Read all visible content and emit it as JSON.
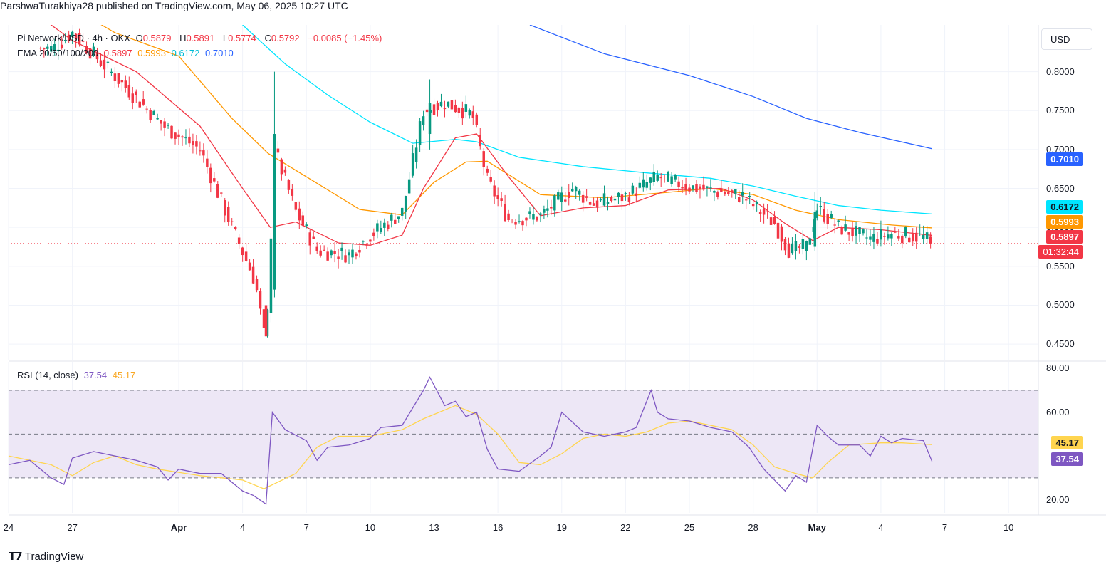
{
  "caption": "ParshwaTurakhiya28 published on TradingView.com, May 06, 2025 10:27 UTC",
  "currency": "USD",
  "brand": "TradingView",
  "legend": {
    "symbol": "Pi Network/USD · 4h · OKX",
    "open_label": "O",
    "open": "0.5879",
    "high_label": "H",
    "high": "0.5891",
    "low_label": "L",
    "low": "0.5774",
    "close_label": "C",
    "close": "0.5792",
    "change": "−0.0085 (−1.45%)",
    "ema_label": "EMA 20/50/100/200",
    "ema20": "0.5897",
    "ema50": "0.5993",
    "ema100": "0.6172",
    "ema200": "0.7010"
  },
  "rsi_legend": {
    "label": "RSI (14, close)",
    "rsi": "37.54",
    "ma": "45.17"
  },
  "price_tags": {
    "ema200": "0.7010",
    "ema100": "0.6172",
    "ema50": "0.5993",
    "ema20": "0.5897",
    "countdown": "01:32:44",
    "rsi": "37.54",
    "rsi_ma": "45.17"
  },
  "colors": {
    "up": "#089981",
    "down": "#f23645",
    "ema20": "#f23645",
    "ema50": "#ff9800",
    "ema100": "#00e5ff",
    "ema200": "#2962ff",
    "rsi": "#7e57c2",
    "rsi_ma": "#ffd54f",
    "rsi_band": "#ede7f6"
  },
  "chart_data": [
    {
      "type": "candlestick",
      "title": "Pi Network/USD · 4h · OKX",
      "y_ticks": [
        "0.4500",
        "0.5000",
        "0.5500",
        "0.6000",
        "0.6500",
        "0.7000",
        "0.7500",
        "0.8000"
      ],
      "y_tick_values": [
        0.45,
        0.5,
        0.55,
        0.6,
        0.65,
        0.7,
        0.75,
        0.8
      ],
      "x_ticks": [
        "24",
        "27",
        "Apr",
        "4",
        "7",
        "10",
        "13",
        "16",
        "19",
        "22",
        "25",
        "28",
        "May",
        "4",
        "7",
        "10"
      ],
      "x_tick_values": [
        0,
        3,
        8,
        11,
        14,
        17,
        20,
        23,
        26,
        29,
        32,
        35,
        38,
        41,
        44,
        47
      ],
      "ylim": [
        0.43,
        0.86
      ],
      "xlim": [
        0,
        48.4
      ],
      "last_price": 0.5792,
      "key_points": [
        {
          "day": 2.1,
          "price": 0.83
        },
        {
          "day": 3.0,
          "price": 0.85
        },
        {
          "day": 5.5,
          "price": 0.78
        },
        {
          "day": 7.3,
          "price": 0.73
        },
        {
          "day": 9.0,
          "price": 0.7
        },
        {
          "day": 10.5,
          "price": 0.6
        },
        {
          "day": 11.6,
          "price": 0.53
        },
        {
          "day": 12.1,
          "price": 0.445
        },
        {
          "day": 12.5,
          "price": 0.7
        },
        {
          "day": 13.5,
          "price": 0.62
        },
        {
          "day": 14.5,
          "price": 0.57
        },
        {
          "day": 16.0,
          "price": 0.565
        },
        {
          "day": 17.0,
          "price": 0.59
        },
        {
          "day": 18.5,
          "price": 0.62
        },
        {
          "day": 19.5,
          "price": 0.75
        },
        {
          "day": 20.5,
          "price": 0.76
        },
        {
          "day": 21.8,
          "price": 0.745
        },
        {
          "day": 22.5,
          "price": 0.66
        },
        {
          "day": 23.5,
          "price": 0.61
        },
        {
          "day": 25.0,
          "price": 0.615
        },
        {
          "day": 26.5,
          "price": 0.65
        },
        {
          "day": 27.5,
          "price": 0.63
        },
        {
          "day": 29.0,
          "price": 0.64
        },
        {
          "day": 30.5,
          "price": 0.665
        },
        {
          "day": 32.0,
          "price": 0.652
        },
        {
          "day": 34.5,
          "price": 0.64
        },
        {
          "day": 36.0,
          "price": 0.605
        },
        {
          "day": 36.7,
          "price": 0.57
        },
        {
          "day": 37.5,
          "price": 0.575
        },
        {
          "day": 38.0,
          "price": 0.625
        },
        {
          "day": 39.0,
          "price": 0.6
        },
        {
          "day": 40.5,
          "price": 0.585
        },
        {
          "day": 41.5,
          "price": 0.592
        },
        {
          "day": 43.0,
          "price": 0.587
        },
        {
          "day": 43.4,
          "price": 0.5792
        }
      ],
      "ema20": [
        [
          0,
          0.9
        ],
        [
          3.0,
          0.84
        ],
        [
          6.0,
          0.8
        ],
        [
          9.0,
          0.73
        ],
        [
          11.0,
          0.65
        ],
        [
          12.3,
          0.6
        ],
        [
          13.5,
          0.607
        ],
        [
          15.5,
          0.58
        ],
        [
          17.0,
          0.577
        ],
        [
          18.5,
          0.59
        ],
        [
          19.5,
          0.65
        ],
        [
          21.0,
          0.715
        ],
        [
          22.0,
          0.72
        ],
        [
          23.5,
          0.665
        ],
        [
          25.0,
          0.615
        ],
        [
          27.0,
          0.625
        ],
        [
          29.0,
          0.628
        ],
        [
          31.0,
          0.648
        ],
        [
          33.5,
          0.65
        ],
        [
          35.0,
          0.635
        ],
        [
          36.5,
          0.605
        ],
        [
          37.8,
          0.583
        ],
        [
          39.0,
          0.6
        ],
        [
          41.0,
          0.597
        ],
        [
          43.4,
          0.5897
        ]
      ],
      "ema50": [
        [
          0,
          0.93
        ],
        [
          5.0,
          0.85
        ],
        [
          8.0,
          0.82
        ],
        [
          10.5,
          0.74
        ],
        [
          12.2,
          0.695
        ],
        [
          14.0,
          0.665
        ],
        [
          16.5,
          0.623
        ],
        [
          18.5,
          0.616
        ],
        [
          20.0,
          0.658
        ],
        [
          21.5,
          0.684
        ],
        [
          22.5,
          0.685
        ],
        [
          25.0,
          0.642
        ],
        [
          28.0,
          0.638
        ],
        [
          31.0,
          0.645
        ],
        [
          33.0,
          0.65
        ],
        [
          35.0,
          0.642
        ],
        [
          37.0,
          0.622
        ],
        [
          39.0,
          0.61
        ],
        [
          41.5,
          0.603
        ],
        [
          43.4,
          0.5993
        ]
      ],
      "ema100": [
        [
          11.0,
          0.86
        ],
        [
          13.0,
          0.81
        ],
        [
          15.0,
          0.77
        ],
        [
          17.0,
          0.735
        ],
        [
          19.0,
          0.708
        ],
        [
          21.0,
          0.713
        ],
        [
          22.0,
          0.71
        ],
        [
          24.0,
          0.69
        ],
        [
          27.0,
          0.678
        ],
        [
          30.0,
          0.67
        ],
        [
          33.0,
          0.663
        ],
        [
          35.0,
          0.653
        ],
        [
          37.0,
          0.64
        ],
        [
          39.0,
          0.628
        ],
        [
          41.0,
          0.622
        ],
        [
          43.4,
          0.6172
        ]
      ],
      "ema200": [
        [
          24.5,
          0.86
        ],
        [
          28.0,
          0.823
        ],
        [
          32.0,
          0.795
        ],
        [
          35.0,
          0.768
        ],
        [
          37.5,
          0.74
        ],
        [
          40.0,
          0.722
        ],
        [
          43.4,
          0.701
        ]
      ]
    },
    {
      "type": "line",
      "title": "RSI (14, close)",
      "y_ticks": [
        "20.00",
        "60.00",
        "80.00"
      ],
      "y_tick_values": [
        20,
        60,
        80
      ],
      "bands": [
        30,
        50,
        70
      ],
      "ylim": [
        14,
        83
      ],
      "xlim": [
        0,
        48.4
      ],
      "rsi": [
        [
          0,
          36
        ],
        [
          1.0,
          38
        ],
        [
          2.0,
          30
        ],
        [
          2.6,
          27
        ],
        [
          3.0,
          39
        ],
        [
          4.0,
          42
        ],
        [
          5.0,
          40
        ],
        [
          6.0,
          38
        ],
        [
          7.0,
          35
        ],
        [
          7.5,
          29
        ],
        [
          8.0,
          34
        ],
        [
          9.0,
          32
        ],
        [
          10.0,
          32
        ],
        [
          11.0,
          24
        ],
        [
          11.5,
          22
        ],
        [
          12.1,
          18
        ],
        [
          12.4,
          60
        ],
        [
          13.0,
          52
        ],
        [
          14.0,
          47
        ],
        [
          14.5,
          38
        ],
        [
          15.0,
          44
        ],
        [
          16.0,
          45
        ],
        [
          17.0,
          48
        ],
        [
          17.5,
          53
        ],
        [
          18.5,
          54
        ],
        [
          19.5,
          70
        ],
        [
          19.8,
          76
        ],
        [
          20.5,
          63
        ],
        [
          21.0,
          65
        ],
        [
          21.5,
          58
        ],
        [
          22.0,
          60
        ],
        [
          22.5,
          43
        ],
        [
          23.0,
          34
        ],
        [
          24.0,
          33
        ],
        [
          25.0,
          40
        ],
        [
          25.5,
          44
        ],
        [
          26.0,
          60
        ],
        [
          27.0,
          51
        ],
        [
          28.0,
          49
        ],
        [
          29.0,
          51
        ],
        [
          29.5,
          53
        ],
        [
          30.2,
          70
        ],
        [
          30.5,
          60
        ],
        [
          31.0,
          57
        ],
        [
          32.0,
          56
        ],
        [
          33.0,
          53
        ],
        [
          34.0,
          51
        ],
        [
          34.8,
          44
        ],
        [
          35.5,
          34
        ],
        [
          36.5,
          24
        ],
        [
          37.0,
          31
        ],
        [
          37.5,
          28
        ],
        [
          38.0,
          54
        ],
        [
          38.5,
          49
        ],
        [
          39.0,
          45
        ],
        [
          40.0,
          45
        ],
        [
          40.5,
          40
        ],
        [
          41.0,
          49
        ],
        [
          41.5,
          46
        ],
        [
          42.0,
          48
        ],
        [
          43.0,
          47
        ],
        [
          43.4,
          37.54
        ]
      ],
      "rsi_ma": [
        [
          0,
          40
        ],
        [
          2.0,
          36
        ],
        [
          3.0,
          31
        ],
        [
          4.0,
          37
        ],
        [
          5.0,
          40
        ],
        [
          6.0,
          36
        ],
        [
          7.0,
          34
        ],
        [
          9.0,
          31
        ],
        [
          11.0,
          29
        ],
        [
          12.0,
          25
        ],
        [
          13.5,
          32
        ],
        [
          14.5,
          44
        ],
        [
          15.5,
          49
        ],
        [
          17.0,
          49
        ],
        [
          18.5,
          52
        ],
        [
          19.5,
          57
        ],
        [
          21.0,
          63
        ],
        [
          22.0,
          59
        ],
        [
          23.0,
          50
        ],
        [
          24.0,
          37
        ],
        [
          25.0,
          36
        ],
        [
          26.0,
          41
        ],
        [
          27.0,
          48
        ],
        [
          28.0,
          50
        ],
        [
          29.0,
          49
        ],
        [
          30.0,
          51
        ],
        [
          31.0,
          55
        ],
        [
          32.0,
          56
        ],
        [
          33.0,
          54
        ],
        [
          34.0,
          52
        ],
        [
          35.0,
          45
        ],
        [
          36.0,
          35
        ],
        [
          37.0,
          32
        ],
        [
          37.8,
          30
        ],
        [
          38.5,
          37
        ],
        [
          39.5,
          45
        ],
        [
          41.0,
          46
        ],
        [
          42.0,
          46
        ],
        [
          43.4,
          45.17
        ]
      ]
    }
  ]
}
